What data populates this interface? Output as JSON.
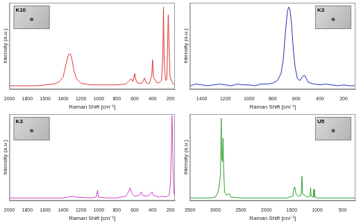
{
  "chart_data": [
    {
      "type": "line",
      "title": "K10",
      "x_label": "Raman Shift [cm⁻¹]",
      "y_label": "Intensity (a.u.)",
      "xlim": [
        2000,
        150
      ],
      "xticks": [
        2000,
        1800,
        1600,
        1400,
        1200,
        1000,
        800,
        600,
        400,
        200
      ],
      "ylim": [
        0,
        100
      ],
      "grid": false,
      "tick_labels": "x",
      "marker": "none",
      "color": "#e03232",
      "x": [
        2000,
        1900,
        1800,
        1700,
        1600,
        1500,
        1450,
        1400,
        1370,
        1340,
        1320,
        1300,
        1280,
        1250,
        1200,
        1100,
        1000,
        900,
        800,
        700,
        660,
        640,
        620,
        600,
        590,
        570,
        520,
        490,
        475,
        440,
        410,
        400,
        390,
        350,
        320,
        300,
        285,
        278,
        270,
        255,
        240,
        225,
        218,
        205,
        190,
        170,
        150
      ],
      "values": [
        4,
        4,
        4,
        4,
        5,
        6,
        8,
        14,
        28,
        40,
        41,
        34,
        22,
        12,
        7,
        5,
        5,
        5,
        5,
        6,
        10,
        12,
        9,
        18,
        12,
        7,
        7,
        13,
        8,
        6,
        15,
        34,
        14,
        7,
        8,
        10,
        40,
        95,
        30,
        10,
        12,
        86,
        60,
        15,
        10,
        6,
        5
      ]
    },
    {
      "type": "line",
      "title": "K3",
      "x_label": "Raman Shift [cm⁻¹]",
      "y_label": "Intensity (a.u.)",
      "xlim": [
        1500,
        100
      ],
      "xticks": [
        1400,
        1200,
        1000,
        800,
        600,
        400,
        200
      ],
      "ylim": [
        0,
        100
      ],
      "grid": false,
      "tick_labels": "x",
      "marker": "none",
      "color": "#1e2db4",
      "x": [
        1500,
        1450,
        1400,
        1350,
        1300,
        1250,
        1200,
        1150,
        1100,
        1050,
        1000,
        950,
        900,
        850,
        800,
        760,
        730,
        710,
        690,
        675,
        665,
        655,
        640,
        625,
        610,
        590,
        570,
        545,
        530,
        515,
        500,
        450,
        400,
        350,
        300,
        250,
        200,
        150,
        100
      ],
      "values": [
        4,
        6,
        5,
        4,
        5,
        6,
        5,
        4,
        6,
        5,
        5,
        4,
        6,
        6,
        7,
        10,
        18,
        35,
        70,
        90,
        95,
        93,
        75,
        45,
        25,
        12,
        10,
        15,
        16,
        12,
        8,
        6,
        5,
        6,
        5,
        4,
        5,
        4,
        4
      ]
    },
    {
      "type": "line",
      "title": "K3",
      "x_label": "Raman Shift [cm⁻¹]",
      "y_label": "Intensity (a.u.)",
      "xlim": [
        2000,
        150
      ],
      "xticks": [
        2000,
        1800,
        1600,
        1400,
        1200,
        1000,
        800,
        600,
        400,
        200
      ],
      "ylim": [
        0,
        100
      ],
      "grid": false,
      "tick_labels": "x",
      "marker": "none",
      "color": "#d23cc3",
      "x": [
        2000,
        1800,
        1600,
        1400,
        1300,
        1250,
        1100,
        1030,
        1015,
        1005,
        900,
        800,
        700,
        670,
        650,
        635,
        600,
        550,
        525,
        510,
        460,
        420,
        405,
        390,
        330,
        300,
        250,
        215,
        200,
        190,
        183,
        178,
        170,
        160,
        150
      ],
      "values": [
        3,
        3,
        3,
        3,
        5,
        4,
        3,
        4,
        12,
        4,
        3,
        3,
        5,
        10,
        15,
        9,
        5,
        6,
        10,
        6,
        5,
        8,
        10,
        6,
        4,
        5,
        4,
        6,
        20,
        60,
        98,
        80,
        30,
        8,
        5
      ]
    },
    {
      "type": "line",
      "title": "U5",
      "x_label": "Raman Shift [cm⁻¹]",
      "y_label": "Intensity (a.u.)",
      "xlim": [
        3500,
        250
      ],
      "xticks": [
        3500,
        3000,
        2500,
        2000,
        1500,
        1000,
        500
      ],
      "ylim": [
        0,
        100
      ],
      "grid": false,
      "tick_labels": "x",
      "marker": "none",
      "color": "#28a028",
      "x": [
        3500,
        3300,
        3100,
        3000,
        2960,
        2930,
        2900,
        2885,
        2875,
        2860,
        2850,
        2840,
        2820,
        2780,
        2730,
        2700,
        2500,
        2200,
        2000,
        1800,
        1600,
        1480,
        1460,
        1440,
        1420,
        1380,
        1320,
        1300,
        1290,
        1200,
        1140,
        1130,
        1120,
        1080,
        1065,
        1055,
        1000,
        800,
        600,
        400,
        250
      ],
      "values": [
        3,
        3,
        3,
        4,
        8,
        15,
        30,
        95,
        50,
        45,
        72,
        40,
        10,
        6,
        8,
        4,
        3,
        3,
        3,
        3,
        3,
        5,
        14,
        16,
        8,
        5,
        6,
        28,
        8,
        4,
        5,
        15,
        5,
        4,
        13,
        4,
        3,
        3,
        3,
        3,
        3
      ]
    }
  ]
}
